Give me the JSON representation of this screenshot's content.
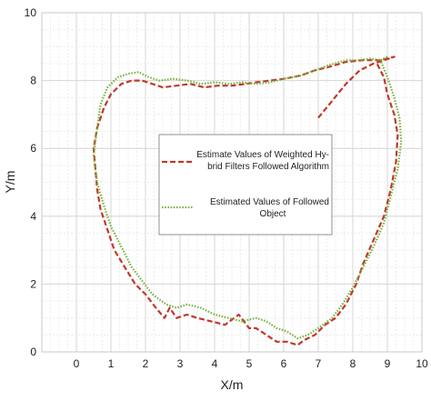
{
  "chart_data": {
    "type": "line",
    "title": "",
    "xlabel": "X/m",
    "ylabel": "Y/m",
    "xlim": [
      -1,
      10
    ],
    "ylim": [
      0,
      10
    ],
    "xticks": [
      "0",
      "1",
      "2",
      "3",
      "4",
      "5",
      "6",
      "7",
      "8",
      "9",
      "10"
    ],
    "yticks": [
      "0",
      "2",
      "4",
      "6",
      "8",
      "10"
    ],
    "grid": true,
    "legend_position": "center",
    "series": [
      {
        "name": "Estimate Values of Weighted Hy-brid Filters Followed Algorithm",
        "legend_lines": [
          "Estimate Values of Weighted Hy-",
          "brid Filters Followed Algorithm"
        ],
        "color": "#c0392b",
        "style": "dashed",
        "x": [
          7.0,
          7.4,
          7.8,
          8.2,
          8.6,
          9.2,
          8.8,
          8.3,
          7.8,
          7.3,
          6.9,
          6.5,
          6.0,
          5.6,
          5.2,
          4.9,
          4.5,
          4.1,
          3.7,
          3.3,
          2.9,
          2.5,
          2.2,
          1.9,
          1.6,
          1.3,
          1.0,
          0.8,
          0.6,
          0.5,
          0.55,
          0.6,
          0.7,
          0.9,
          1.1,
          1.4,
          1.7,
          2.0,
          2.3,
          2.55,
          2.7,
          2.9,
          3.2,
          3.5,
          3.9,
          4.3,
          4.7,
          5.0,
          5.2,
          5.5,
          5.8,
          6.1,
          6.4,
          6.6,
          6.9,
          7.2,
          7.5,
          7.8,
          8.1,
          8.3,
          8.6,
          8.9,
          9.1,
          9.25,
          9.3,
          9.2,
          9.0,
          8.9,
          8.7
        ],
        "y": [
          6.9,
          7.4,
          7.9,
          8.3,
          8.5,
          8.7,
          8.6,
          8.6,
          8.55,
          8.4,
          8.3,
          8.15,
          8.05,
          8.0,
          7.95,
          7.9,
          7.85,
          7.85,
          7.8,
          7.9,
          7.85,
          7.8,
          7.9,
          8.0,
          8.0,
          7.9,
          7.6,
          7.2,
          6.6,
          6.0,
          5.4,
          4.8,
          4.2,
          3.6,
          3.0,
          2.5,
          2.0,
          1.7,
          1.3,
          1.0,
          1.3,
          1.0,
          1.1,
          1.0,
          0.9,
          0.8,
          1.1,
          0.7,
          0.7,
          0.5,
          0.3,
          0.3,
          0.2,
          0.35,
          0.5,
          0.8,
          1.0,
          1.4,
          2.0,
          2.6,
          3.3,
          4.0,
          4.8,
          5.6,
          6.4,
          7.0,
          7.6,
          8.1,
          8.5
        ]
      },
      {
        "name": "Estimated Values of Followed Object",
        "legend_lines": [
          "Estimated Values of Followed",
          "Object"
        ],
        "color": "#7cb342",
        "style": "dotted",
        "x": [
          9.0,
          8.8,
          8.5,
          8.2,
          7.8,
          7.3,
          6.9,
          6.5,
          6.0,
          5.6,
          5.2,
          4.8,
          4.4,
          4.0,
          3.6,
          3.2,
          2.8,
          2.4,
          2.1,
          1.8,
          1.5,
          1.2,
          0.9,
          0.7,
          0.6,
          0.5,
          0.6,
          0.8,
          1.0,
          1.3,
          1.6,
          1.9,
          2.2,
          2.6,
          2.9,
          3.2,
          3.6,
          4.0,
          4.4,
          4.8,
          5.2,
          5.5,
          5.8,
          6.1,
          6.4,
          6.7,
          7.0,
          7.4,
          7.7,
          8.0,
          8.3,
          8.6,
          8.9,
          9.1,
          9.3,
          9.4,
          9.35,
          9.2,
          9.0,
          8.8
        ],
        "y": [
          8.7,
          8.6,
          8.65,
          8.6,
          8.6,
          8.45,
          8.3,
          8.15,
          8.05,
          7.95,
          7.9,
          7.95,
          7.9,
          7.95,
          7.9,
          8.0,
          8.05,
          8.0,
          8.1,
          8.25,
          8.2,
          8.1,
          7.8,
          7.3,
          6.6,
          5.8,
          5.0,
          4.3,
          3.7,
          3.1,
          2.5,
          2.1,
          1.7,
          1.4,
          1.3,
          1.4,
          1.3,
          1.1,
          1.0,
          0.9,
          1.0,
          0.9,
          0.7,
          0.6,
          0.4,
          0.5,
          0.7,
          1.0,
          1.4,
          1.9,
          2.5,
          3.1,
          3.8,
          4.6,
          5.4,
          6.2,
          6.9,
          7.5,
          8.1,
          8.6
        ]
      }
    ]
  }
}
